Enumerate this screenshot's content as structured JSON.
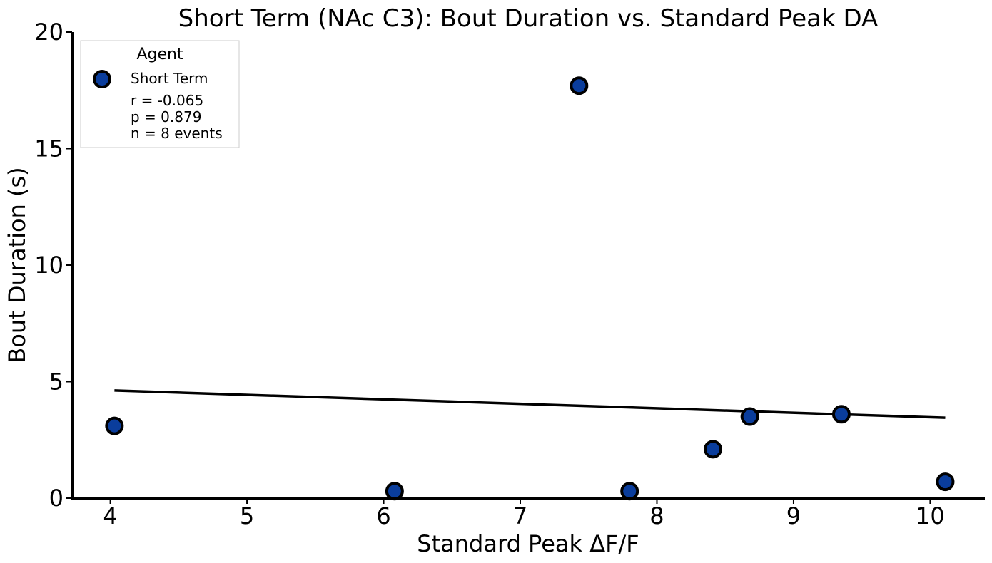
{
  "chart_data": {
    "type": "scatter",
    "title": "Short Term (NAc C3): Bout Duration vs. Standard Peak DA",
    "xlabel": "Standard Peak ΔF/F",
    "ylabel": "Bout Duration (s)",
    "xlim": [
      3.72,
      10.4
    ],
    "ylim": [
      0,
      20
    ],
    "xticks": [
      4,
      5,
      6,
      7,
      8,
      9,
      10
    ],
    "yticks": [
      0,
      5,
      10,
      15,
      20
    ],
    "grid": false,
    "legend_placement": "top-left",
    "legend_title": "Agent",
    "series": [
      {
        "name": "Short Term",
        "color": "#0a3d9c",
        "marker_edge": "#000000",
        "x": [
          4.03,
          6.08,
          7.43,
          7.8,
          8.41,
          8.68,
          9.35,
          10.11
        ],
        "y": [
          3.1,
          0.3,
          17.7,
          0.3,
          2.1,
          3.5,
          3.6,
          0.7
        ]
      }
    ],
    "fit_line": {
      "x": [
        4.03,
        10.11
      ],
      "y": [
        4.62,
        3.45
      ],
      "color": "#000000"
    },
    "stats": [
      "r = -0.065",
      "p = 0.879",
      "n = 8 events"
    ]
  }
}
